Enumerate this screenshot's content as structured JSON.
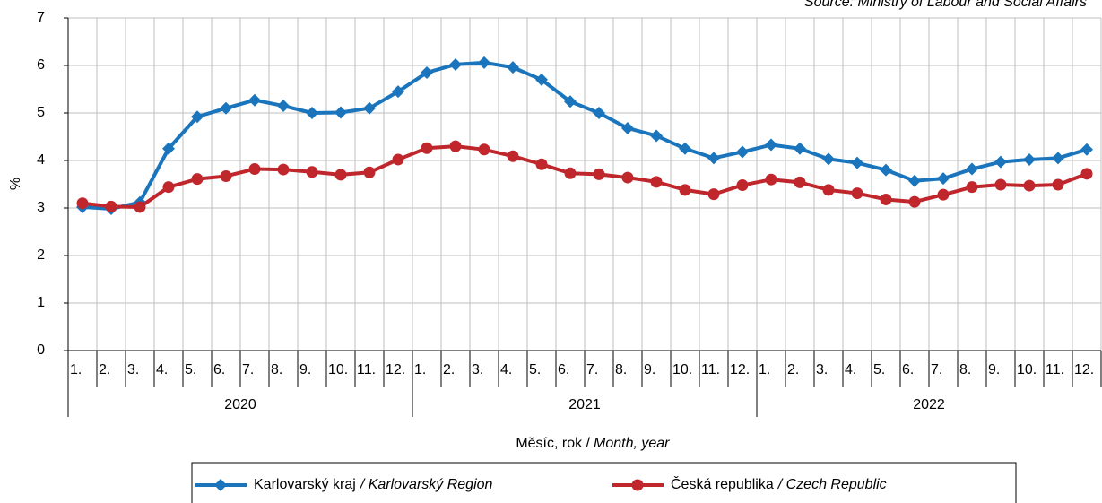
{
  "chart_data": {
    "type": "line",
    "source": "Source: Ministry of Labour and Social Affairs",
    "ylabel": "%",
    "xlabel": "Měsíc, rok /",
    "xlabel_en": "Month, year",
    "categories": [
      "1.",
      "2.",
      "3.",
      "4.",
      "5.",
      "6.",
      "7.",
      "8.",
      "9.",
      "10.",
      "11.",
      "12.",
      "1.",
      "2.",
      "3.",
      "4.",
      "5.",
      "6.",
      "7.",
      "8.",
      "9.",
      "10.",
      "11.",
      "12.",
      "1.",
      "2.",
      "3.",
      "4.",
      "5.",
      "6.",
      "7.",
      "8.",
      "9.",
      "10.",
      "11.",
      "12."
    ],
    "years": [
      "2020",
      "2021",
      "2022"
    ],
    "ylim": [
      0,
      7
    ],
    "yticks": [
      0,
      1,
      2,
      3,
      4,
      5,
      6,
      7
    ],
    "grid": true,
    "series": [
      {
        "name": "Karlovarský kraj",
        "name_en": "/ Karlovarský Region",
        "color": "#1a75bc",
        "marker": "diamond",
        "values": [
          3.02,
          2.98,
          3.12,
          4.25,
          4.92,
          5.1,
          5.27,
          5.15,
          5.0,
          5.01,
          5.1,
          5.45,
          5.85,
          6.02,
          6.06,
          5.96,
          5.7,
          5.24,
          5.0,
          4.68,
          4.52,
          4.25,
          4.05,
          4.18,
          4.33,
          4.25,
          4.03,
          3.95,
          3.8,
          3.57,
          3.62,
          3.82,
          3.97,
          4.02,
          4.05,
          4.23
        ]
      },
      {
        "name": "Česká republika",
        "name_en": "/ Czech Republic",
        "color": "#c0272d",
        "marker": "circle",
        "values": [
          3.1,
          3.03,
          3.02,
          3.44,
          3.61,
          3.67,
          3.82,
          3.81,
          3.76,
          3.7,
          3.75,
          4.02,
          4.26,
          4.3,
          4.23,
          4.09,
          3.92,
          3.73,
          3.71,
          3.64,
          3.55,
          3.38,
          3.29,
          3.48,
          3.6,
          3.54,
          3.38,
          3.31,
          3.18,
          3.13,
          3.28,
          3.44,
          3.49,
          3.47,
          3.49,
          3.72
        ]
      }
    ]
  }
}
